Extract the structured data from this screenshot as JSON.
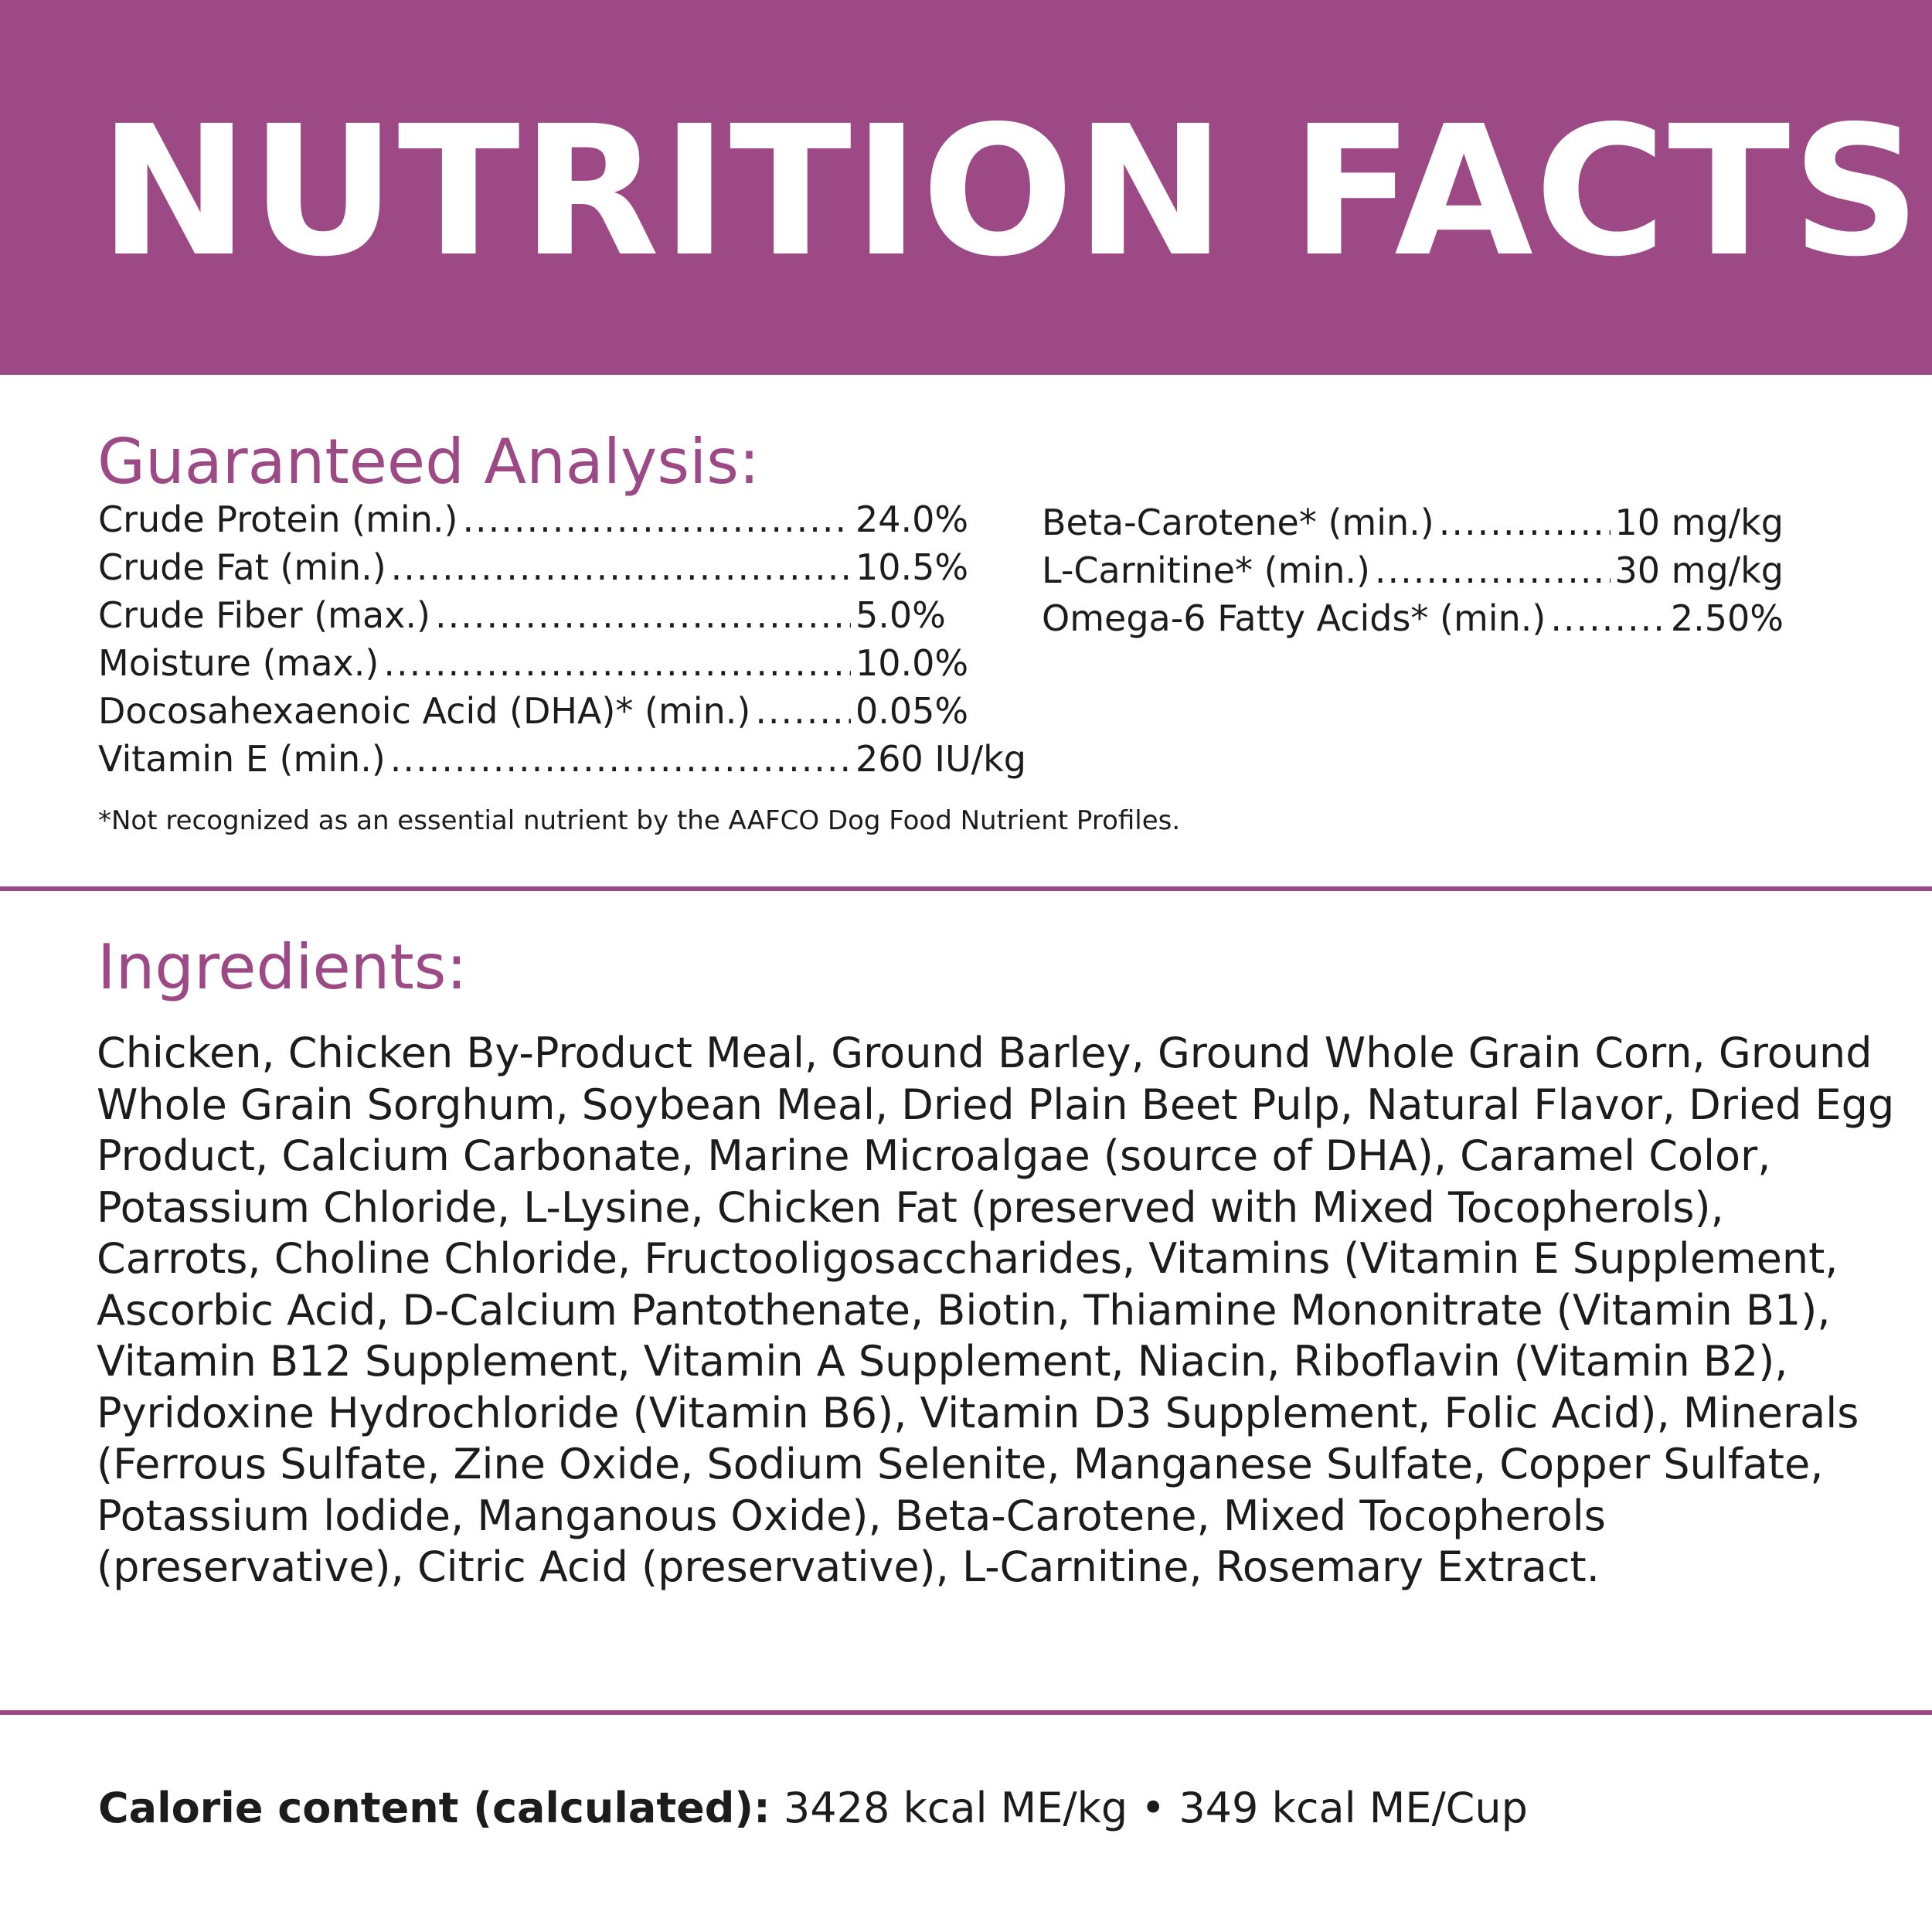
{
  "header": {
    "title": "NUTRITION FACTS"
  },
  "guaranteed_analysis": {
    "heading": "Guaranteed Analysis:",
    "left_items": [
      {
        "label": "Crude Protein (min.)",
        "value": "24.0%"
      },
      {
        "label": "Crude Fat (min.)",
        "value": "10.5%"
      },
      {
        "label": "Crude Fiber (max.)",
        "value": "5.0%"
      },
      {
        "label": "Moisture (max.)",
        "value": "10.0%"
      },
      {
        "label": "Docosahexaenoic Acid (DHA)* (min.)",
        "value": "0.05%"
      },
      {
        "label": "Vitamin E (min.)",
        "value": "260 IU/kg"
      }
    ],
    "right_items": [
      {
        "label": "Beta-Carotene* (min.)",
        "value": "10 mg/kg"
      },
      {
        "label": "L-Carnitine* (min.)",
        "value": "30 mg/kg"
      },
      {
        "label": "Omega-6 Fatty Acids* (min.)",
        "value": "2.50%"
      }
    ],
    "footnote": "*Not recognized as an essential nutrient by the AAFCO Dog Food Nutrient Profiles."
  },
  "ingredients": {
    "heading": "Ingredients:",
    "text": "Chicken, Chicken By-Product Meal, Ground Barley, Ground Whole Grain Corn, Ground Whole Grain Sorghum, Soybean Meal, Dried Plain Beet Pulp, Natural Flavor, Dried Egg Product, Calcium Carbonate, Marine Microalgae (source of DHA), Caramel Color, Potassium Chloride, L-Lysine, Chicken Fat (preserved with Mixed Tocopherols), Carrots, Choline Chloride, Fructooligosaccharides, Vitamins (Vitamin E Supplement, Ascorbic Acid, D-Calcium Pantothenate, Biotin, Thiamine Mononitrate (Vitamin B1), Vitamin B12 Supplement, Vitamin A Supplement, Niacin, Riboflavin (Vitamin B2), Pyridoxine Hydrochloride (Vitamin B6), Vitamin D3 Supplement, Folic Acid), Minerals (Ferrous Sulfate, Zine Oxide, Sodium Selenite, Manganese Sulfate, Copper Sulfate, Potassium lodide, Manganous Oxide), Beta-Carotene, Mixed Tocopherols (preservative), Citric Acid (preservative), L-Carnitine, Rosemary Extract."
  },
  "calorie": {
    "label": "Calorie content (calculated):",
    "value": "3428 kcal ME/kg • 349 kcal ME/Cup"
  },
  "colors": {
    "brand_purple": "#9c4985",
    "text": "#1c1c1c",
    "background": "#ffffff"
  }
}
